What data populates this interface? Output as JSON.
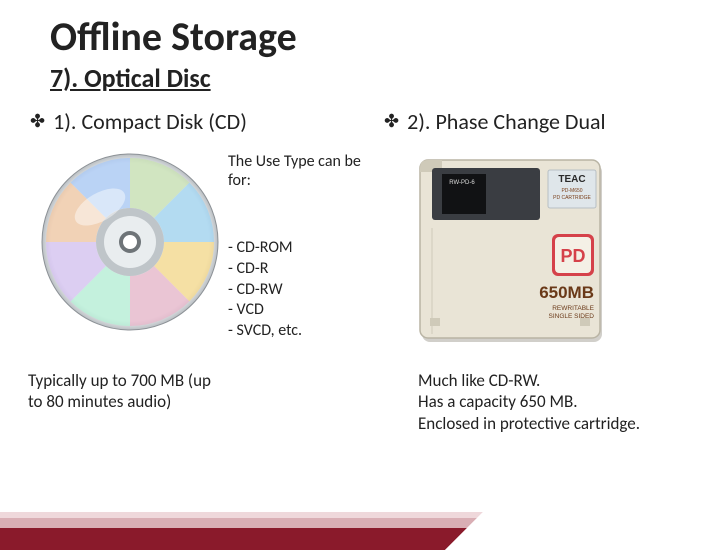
{
  "title": "Offline Storage",
  "subtitle": "7). Optical Disc",
  "left": {
    "heading": "1). Compact Disk (CD)",
    "use_label": "The Use Type can be for:",
    "types": [
      "- CD-ROM",
      "- CD-R",
      "- CD-RW",
      "- VCD",
      "- SVCD, etc."
    ],
    "caption": "Typically up to 700 MB (up to 80 minutes audio)"
  },
  "right": {
    "heading": "2). Phase Change Dual",
    "caption": "Much like CD-RW.\nHas a capacity 650 MB.\nEnclosed in protective cartridge."
  },
  "cd_disc": {
    "rim_color": "#d9dde0",
    "tints": [
      "#c7e0b0",
      "#9fd3f0",
      "#f7d98a",
      "#e8b5c9",
      "#b6f0d6",
      "#d6c1f2",
      "#f2c7a1",
      "#a8c8f5"
    ],
    "center_outer": "#bfc5c9",
    "center_inner": "#e9edef",
    "hole": "#6e7478"
  },
  "pd_cart": {
    "bg": "#e9e4d6",
    "shutter": "#3a3d42",
    "shutter_slot": "#111214",
    "label_bg": "#dfe6ea",
    "brand": "TEAC",
    "model": "PD-M650\nPD CARTRIDGE",
    "capacity": "650MB",
    "sub": "REWRITABLE\nSINGLE SIDED",
    "pd_logo_outer": "#d5414a",
    "pd_logo_text": "PD",
    "border": "#b9b4a4",
    "shadow": "#7c7666"
  },
  "colors": {
    "text": "#222222",
    "wedge_dark": "#8a1a2b",
    "wedge_mid": "#d9aeb4",
    "wedge_light": "#efd8db"
  }
}
